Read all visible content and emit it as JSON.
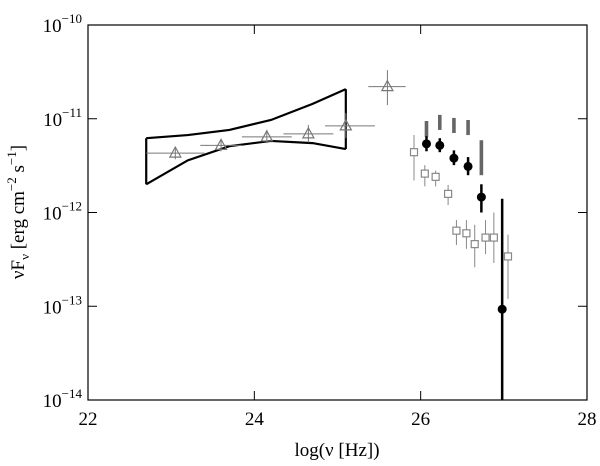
{
  "chart_data": {
    "type": "scatter",
    "xlabel": "log(ν [Hz])",
    "ylabel": {
      "base": "νF",
      "sub": "ν",
      "unit": " [erg cm",
      "exp1": "−2",
      "unit2": " s",
      "exp2": "−1",
      "close": "]"
    },
    "xlim": [
      22,
      28
    ],
    "ylim": [
      1e-14,
      1e-10
    ],
    "yscale": "log",
    "xticks": [
      22,
      24,
      26,
      28
    ],
    "yticks": [
      {
        "value": 1e-14,
        "label": "10",
        "exponent": "−14"
      },
      {
        "value": 1e-13,
        "label": "10",
        "exponent": "−13"
      },
      {
        "value": 1e-12,
        "label": "10",
        "exponent": "−12"
      },
      {
        "value": 1e-11,
        "label": "10",
        "exponent": "−11"
      },
      {
        "value": 1e-10,
        "label": "10",
        "exponent": "−10"
      }
    ],
    "butterfly": {
      "color": "#000000",
      "upper": {
        "x": [
          22.7,
          23.2,
          23.7,
          24.2,
          24.7,
          25.1
        ],
        "values": [
          6.2e-12,
          6.7e-12,
          7.6e-12,
          9.7e-12,
          1.44e-11,
          2.07e-11
        ]
      },
      "lower": {
        "x": [
          22.7,
          23.2,
          23.7,
          24.2,
          24.7,
          25.1
        ],
        "values": [
          2e-12,
          3.6e-12,
          5.1e-12,
          5.8e-12,
          5.5e-12,
          4.75e-12
        ]
      }
    },
    "series": [
      {
        "marker": "triangle",
        "color": "#777777",
        "x": [
          23.05,
          23.6,
          24.15,
          24.65,
          25.1,
          25.6
        ],
        "values": [
          4.3e-12,
          5.2e-12,
          6.4e-12,
          6.9e-12,
          8.4e-12,
          2.2e-11
        ],
        "x_low": [
          22.7,
          23.35,
          23.85,
          24.35,
          24.85,
          25.37
        ],
        "x_high": [
          23.4,
          23.85,
          24.45,
          24.95,
          25.45,
          25.82
        ],
        "y_low": [
          3.7e-12,
          4.5e-12,
          5.5e-12,
          5.6e-12,
          6.2e-12,
          1.4e-11
        ],
        "y_high": [
          5e-12,
          6.1e-12,
          7.6e-12,
          8.6e-12,
          1.15e-11,
          3.3e-11
        ]
      },
      {
        "marker": "square",
        "color": "#888888",
        "x": [
          25.92,
          26.05,
          26.18,
          26.33,
          26.43,
          26.55,
          26.65,
          26.78,
          26.88,
          27.05
        ],
        "values": [
          4.4e-12,
          2.6e-12,
          2.4e-12,
          1.58e-12,
          6.4e-13,
          6e-13,
          4.6e-13,
          5.4e-13,
          5.4e-13,
          3.4e-13
        ],
        "y_low": [
          2.2e-12,
          1.9e-12,
          1.9e-12,
          1.2e-12,
          4.5e-13,
          4.1e-13,
          2.6e-13,
          3.6e-13,
          2.9e-13,
          1.2e-13
        ],
        "y_high": [
          6.7e-12,
          3.2e-12,
          2.8e-12,
          1.97e-12,
          8.3e-13,
          8.3e-13,
          7.4e-13,
          8.3e-13,
          1e-12,
          5.8e-13
        ]
      },
      {
        "marker": "bar",
        "color": "#666666",
        "x": [
          26.07,
          26.23,
          26.4,
          26.57,
          26.73
        ],
        "y_low": [
          6.4e-12,
          7.6e-12,
          7.05e-12,
          6.7e-12,
          2.5e-12
        ],
        "y_high": [
          9.46e-12,
          1.1e-11,
          1.02e-11,
          9.7e-12,
          5.9e-12
        ]
      },
      {
        "marker": "circle",
        "color": "#000000",
        "x": [
          26.07,
          26.23,
          26.4,
          26.57,
          26.73,
          26.98
        ],
        "values": [
          5.4e-12,
          5.2e-12,
          3.8e-12,
          3.1e-12,
          1.46e-12,
          9.3e-14
        ],
        "y_low": [
          4.5e-12,
          4.4e-12,
          3.2e-12,
          2.5e-12,
          1e-12,
          1e-14
        ],
        "y_high": [
          6.5e-12,
          6.2e-12,
          4.6e-12,
          3.9e-12,
          2e-12,
          1.4e-12
        ]
      }
    ]
  }
}
